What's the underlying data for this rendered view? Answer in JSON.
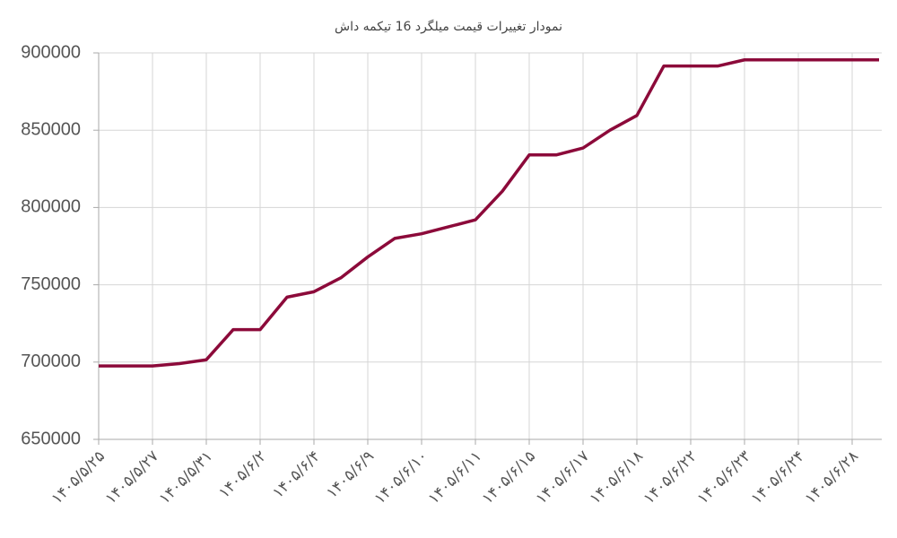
{
  "chart_data": {
    "type": "line",
    "title": "نمودار تغییرات قیمت میلگرد 16 تیکمه داش",
    "categories": [
      "۱۴۰۵/۵/۲۵",
      null,
      "۱۴۰۵/۵/۲۷",
      null,
      "۱۴۰۵/۵/۳۱",
      null,
      "۱۴۰۵/۶/۲",
      null,
      "۱۴۰۵/۶/۴",
      null,
      "۱۴۰۵/۶/۹",
      null,
      "۱۴۰۵/۶/۱۰",
      null,
      "۱۴۰۵/۶/۱۱",
      null,
      "۱۴۰۵/۶/۱۵",
      null,
      "۱۴۰۵/۶/۱۷",
      null,
      "۱۴۰۵/۶/۱۸",
      null,
      "۱۴۰۵/۶/۲۲",
      null,
      "۱۴۰۵/۶/۲۳",
      null,
      "۱۴۰۵/۶/۲۴",
      null,
      "۱۴۰۵/۶/۲۸",
      null
    ],
    "values": [
      697500,
      697500,
      697500,
      699000,
      701500,
      721000,
      721000,
      742000,
      745500,
      754500,
      768000,
      780000,
      783000,
      787500,
      792000,
      810500,
      834000,
      834000,
      838500,
      850000,
      859500,
      891500,
      891500,
      891500,
      895500,
      895500,
      895500,
      895500,
      895500,
      895500
    ],
    "color": "#8c0a3a",
    "ylim": [
      650000,
      900000
    ],
    "yticks": [
      650000,
      700000,
      750000,
      800000,
      850000,
      900000
    ],
    "grid": true
  }
}
